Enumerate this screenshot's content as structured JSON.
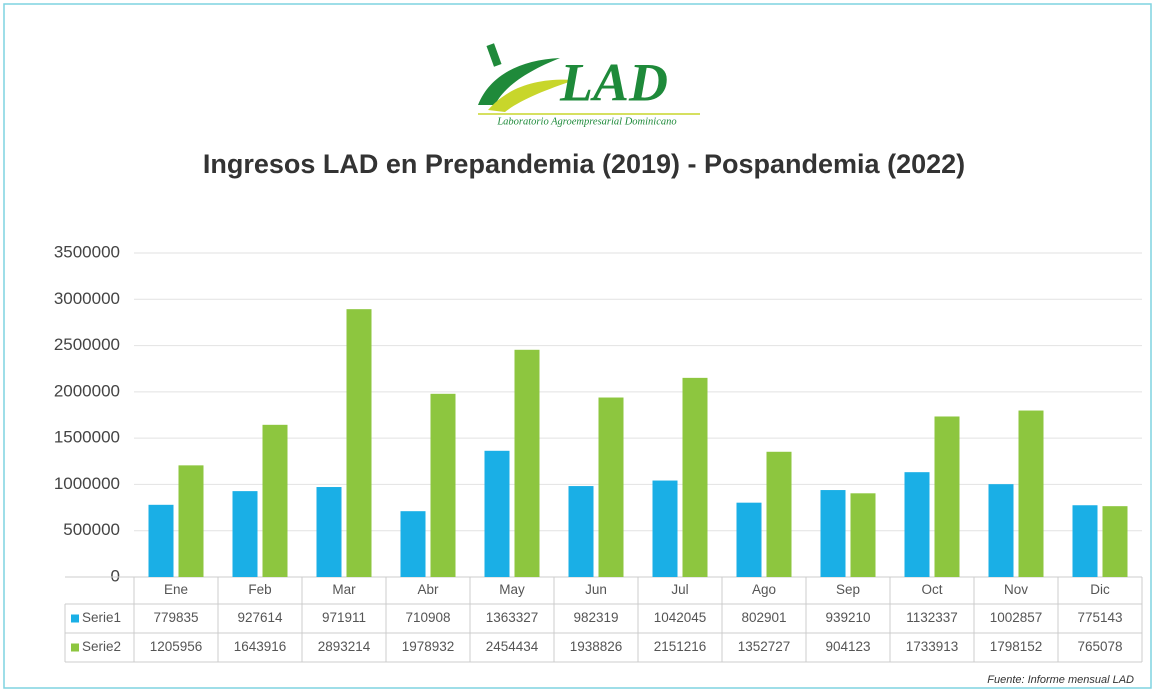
{
  "logo": {
    "name": "LAD",
    "subtitle": "Laboratorio Agroempresarial Dominicano"
  },
  "chart_data": {
    "type": "bar",
    "title": "Ingresos LAD en Prepandemia (2019) - Pospandemia (2022)",
    "categories": [
      "Ene",
      "Feb",
      "Mar",
      "Abr",
      "May",
      "Jun",
      "Jul",
      "Ago",
      "Sep",
      "Oct",
      "Nov",
      "Dic"
    ],
    "series": [
      {
        "name": "Serie1",
        "color": "#1aafe6",
        "values": [
          779835,
          927614,
          971911,
          710908,
          1363327,
          982319,
          1042045,
          802901,
          939210,
          1132337,
          1002857,
          775143
        ]
      },
      {
        "name": "Serie2",
        "color": "#8dc63f",
        "values": [
          1205956,
          1643916,
          2893214,
          1978932,
          2454434,
          1938826,
          2151216,
          1352727,
          904123,
          1733913,
          1798152,
          765078
        ]
      }
    ],
    "ylim": [
      0,
      3500000
    ],
    "yticks": [
      0,
      500000,
      1000000,
      1500000,
      2000000,
      2500000,
      3000000,
      3500000
    ],
    "grid": true,
    "source": "Fuente: Informe mensual LAD"
  }
}
